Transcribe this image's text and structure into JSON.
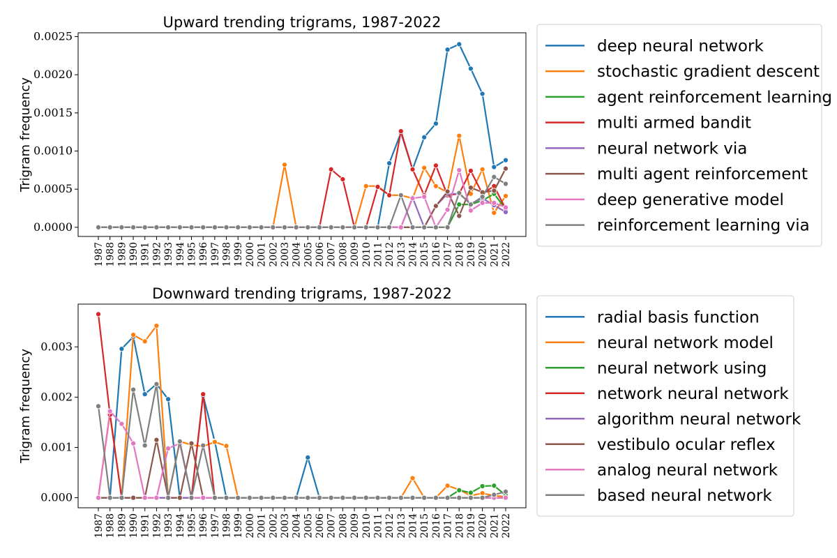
{
  "chart_data": [
    {
      "type": "line",
      "title": "Upward trending trigrams, 1987-2022",
      "xlabel": "",
      "ylabel": "Trigram frequency",
      "ylim": [
        -0.00012,
        0.00255
      ],
      "yticks": [
        0,
        0.0005,
        0.001,
        0.0015,
        0.002,
        0.0025
      ],
      "ytick_labels": [
        "0.0000",
        "0.0005",
        "0.0010",
        "0.0015",
        "0.0020",
        "0.0025"
      ],
      "x": [
        "1987",
        "1988",
        "1989",
        "1990",
        "1991",
        "1992",
        "1993",
        "1994",
        "1995",
        "1996",
        "1997",
        "1998",
        "1999",
        "2000",
        "2001",
        "2002",
        "2003",
        "2004",
        "2005",
        "2006",
        "2007",
        "2008",
        "2009",
        "2010",
        "2011",
        "2012",
        "2013",
        "2014",
        "2015",
        "2016",
        "2017",
        "2018",
        "2019",
        "2020",
        "2021",
        "2022"
      ],
      "legend_position": "outside-right",
      "grid": false,
      "series": [
        {
          "name": "deep neural network",
          "color": "#1f77b4",
          "values": [
            0,
            0,
            0,
            0,
            0,
            0,
            0,
            0,
            0,
            0,
            0,
            0,
            0,
            0,
            0,
            0,
            0,
            0,
            0,
            0,
            0,
            0,
            0,
            0,
            0,
            0.00084,
            0.00124,
            0.00076,
            0.00118,
            0.00136,
            0.00233,
            0.0024,
            0.00208,
            0.00175,
            0.00079,
            0.00088
          ]
        },
        {
          "name": "stochastic gradient descent",
          "color": "#ff7f0e",
          "values": [
            0,
            0,
            0,
            0,
            0,
            0,
            0,
            0,
            0,
            0,
            0,
            0,
            0,
            0,
            0,
            0,
            0.00082,
            0,
            0,
            0,
            0,
            0,
            0,
            0.00054,
            0.00054,
            0.00042,
            0.00042,
            0.00038,
            0.00078,
            0.00054,
            0.00046,
            0.0012,
            0.00044,
            0.00076,
            0.00019,
            0.00041
          ]
        },
        {
          "name": "agent reinforcement learning",
          "color": "#2ca02c",
          "values": [
            0,
            0,
            0,
            0,
            0,
            0,
            0,
            0,
            0,
            0,
            0,
            0,
            0,
            0,
            0,
            0,
            0,
            0,
            0,
            0,
            0,
            0,
            0,
            0,
            0,
            0,
            0,
            0,
            0,
            0,
            0,
            0.0003,
            0.0003,
            0.00035,
            0.00044,
            0.00024
          ]
        },
        {
          "name": "multi armed bandit",
          "color": "#d62728",
          "values": [
            0,
            0,
            0,
            0,
            0,
            0,
            0,
            0,
            0,
            0,
            0,
            0,
            0,
            0,
            0,
            0,
            0,
            0,
            0,
            0,
            0.00076,
            0.00063,
            0,
            0,
            0.00053,
            0.00042,
            0.00126,
            0.00076,
            0.00042,
            0.00081,
            0.00042,
            0.00044,
            0.00074,
            0.00044,
            0.00054,
            0.00024
          ]
        },
        {
          "name": "neural network via",
          "color": "#9467bd",
          "values": [
            0,
            0,
            0,
            0,
            0,
            0,
            0,
            0,
            0,
            0,
            0,
            0,
            0,
            0,
            0,
            0,
            0,
            0,
            0,
            0,
            0,
            0,
            0,
            0,
            0,
            0,
            0,
            0.00039,
            0,
            0.00028,
            0.00044,
            0.00044,
            0.00031,
            0.00038,
            0.00029,
            0.0002
          ]
        },
        {
          "name": "multi agent reinforcement",
          "color": "#8c564b",
          "values": [
            0,
            0,
            0,
            0,
            0,
            0,
            0,
            0,
            0,
            0,
            0,
            0,
            0,
            0,
            0,
            0,
            0,
            0,
            0,
            0,
            0,
            0,
            0,
            0,
            0,
            0,
            0,
            0,
            0,
            0.00028,
            0.00047,
            0.00015,
            0.00052,
            0.00046,
            0.00048,
            0.00077
          ]
        },
        {
          "name": "deep generative model",
          "color": "#e377c2",
          "values": [
            0,
            0,
            0,
            0,
            0,
            0,
            0,
            0,
            0,
            0,
            0,
            0,
            0,
            0,
            0,
            0,
            0,
            0,
            0,
            0,
            0,
            0,
            0,
            0,
            0,
            0,
            0,
            0.00038,
            0.0004,
            0,
            0.00023,
            0.00075,
            0.00022,
            0.00032,
            0.00032,
            0.00026
          ]
        },
        {
          "name": "reinforcement learning via",
          "color": "#7f7f7f",
          "values": [
            0,
            0,
            0,
            0,
            0,
            0,
            0,
            0,
            0,
            0,
            0,
            0,
            0,
            0,
            0,
            0,
            0,
            0,
            0,
            0,
            0,
            0,
            0,
            0,
            0,
            0,
            0.00042,
            0,
            0,
            0,
            0,
            0.00045,
            0.0003,
            0.0004,
            0.00066,
            0.00057
          ]
        }
      ]
    },
    {
      "type": "line",
      "title": "Downward trending trigrams, 1987-2022",
      "xlabel": "",
      "ylabel": "Trigram frequency",
      "ylim": [
        -0.0002,
        0.00385
      ],
      "yticks": [
        0,
        0.001,
        0.002,
        0.003
      ],
      "ytick_labels": [
        "0.000",
        "0.001",
        "0.002",
        "0.003"
      ],
      "x": [
        "1987",
        "1988",
        "1989",
        "1990",
        "1991",
        "1992",
        "1993",
        "1994",
        "1995",
        "1996",
        "1997",
        "1998",
        "1999",
        "2000",
        "2001",
        "2002",
        "2003",
        "2004",
        "2005",
        "2006",
        "2007",
        "2008",
        "2009",
        "2010",
        "2011",
        "2012",
        "2013",
        "2014",
        "2015",
        "2016",
        "2017",
        "2018",
        "2019",
        "2020",
        "2021",
        "2022"
      ],
      "legend_position": "outside-right",
      "grid": false,
      "series": [
        {
          "name": "radial basis function",
          "color": "#1f77b4",
          "values": [
            0,
            0,
            0.00296,
            0.0032,
            0.00206,
            0.00226,
            0.00196,
            0,
            0,
            0.00203,
            0.00112,
            0,
            0,
            0,
            0,
            0,
            0,
            0,
            0.0008,
            0,
            0,
            0,
            0,
            0,
            0,
            0,
            0,
            0,
            0,
            0,
            0,
            0,
            0,
            0,
            0,
            0
          ]
        },
        {
          "name": "neural network model",
          "color": "#ff7f0e",
          "values": [
            0,
            0.00168,
            0,
            0.00324,
            0.00311,
            0.00342,
            0,
            0.00112,
            0.00105,
            0.00102,
            0.00111,
            0.00103,
            0,
            0,
            0,
            0,
            0,
            0,
            0,
            0,
            0,
            0,
            0,
            0,
            0,
            0,
            0,
            0.00039,
            0,
            0,
            0.00024,
            0.00016,
            4e-05,
            9e-05,
            4e-05,
            2e-05
          ]
        },
        {
          "name": "neural network using",
          "color": "#2ca02c",
          "values": [
            0,
            0,
            0,
            0,
            0,
            0,
            0,
            0,
            0,
            0,
            0,
            0,
            0,
            0,
            0,
            0,
            0,
            0,
            0,
            0,
            0,
            0,
            0,
            0,
            0,
            0,
            0,
            0,
            0,
            0,
            0,
            0.00015,
            0.0001,
            0.00023,
            0.00024,
            5e-05
          ]
        },
        {
          "name": "network neural network",
          "color": "#d62728",
          "values": [
            0.00365,
            0.00165,
            0,
            0,
            0,
            0,
            0,
            0,
            0,
            0.00206,
            0,
            0,
            0,
            0,
            0,
            0,
            0,
            0,
            0,
            0,
            0,
            0,
            0,
            0,
            0,
            0,
            0,
            0,
            0,
            0,
            0,
            0,
            0,
            0,
            0,
            0
          ]
        },
        {
          "name": "algorithm neural network",
          "color": "#9467bd",
          "values": [
            0,
            0,
            0,
            0,
            0,
            0,
            0,
            0,
            0,
            0,
            0,
            0,
            0,
            0,
            0,
            0,
            0,
            0,
            0,
            0,
            0,
            0,
            0,
            0,
            0,
            0,
            0,
            0,
            0,
            0,
            0,
            0,
            0,
            0,
            0,
            0
          ]
        },
        {
          "name": "vestibulo ocular reflex",
          "color": "#8c564b",
          "values": [
            0,
            0,
            0,
            0,
            0,
            0.00115,
            0,
            0,
            0.00108,
            0,
            0,
            0,
            0,
            0,
            0,
            0,
            0,
            0,
            0,
            0,
            0,
            0,
            0,
            0,
            0,
            0,
            0,
            0,
            0,
            0,
            0,
            0,
            0,
            0,
            0,
            0
          ]
        },
        {
          "name": "analog neural network",
          "color": "#e377c2",
          "values": [
            0,
            0.00172,
            0.00147,
            0.00108,
            0,
            0,
            0.00098,
            0.00108,
            0,
            0,
            0,
            0,
            0,
            0,
            0,
            0,
            0,
            0,
            0,
            0,
            0,
            0,
            0,
            0,
            0,
            0,
            0,
            0,
            0,
            0,
            0,
            0,
            0,
            0,
            0,
            0
          ]
        },
        {
          "name": "based neural network",
          "color": "#7f7f7f",
          "values": [
            0.00182,
            0,
            0,
            0.00215,
            0.00104,
            0.00226,
            0,
            0.00112,
            0,
            0.00104,
            0,
            0,
            0,
            0,
            0,
            0,
            0,
            0,
            0,
            0,
            0,
            0,
            0,
            0,
            0,
            0,
            0,
            0,
            0,
            0,
            0,
            0,
            0,
            0,
            6e-05,
            0.00012
          ]
        }
      ]
    }
  ]
}
